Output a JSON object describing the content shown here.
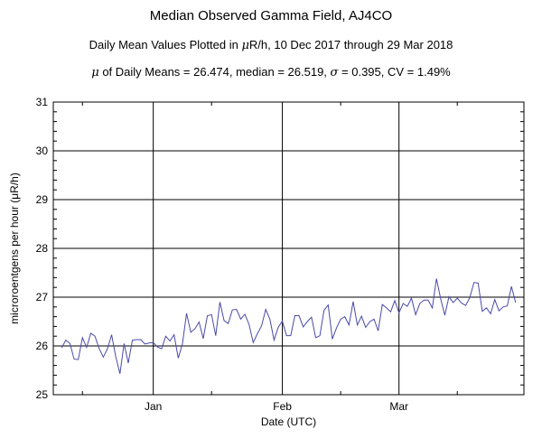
{
  "header": {
    "title": "Median Observed Gamma Field, AJ4CO",
    "subtitle_prefix": "Daily Mean Values Plotted in ",
    "mu": "μ",
    "subtitle_suffix": "R/h, 10 Dec 2017 through 29 Mar 2018",
    "stats_p1": " of Daily Means = 26.474,   median = 26.519,   ",
    "sigma": "σ",
    "stats_p2": " = 0.395,   CV = 1.49%"
  },
  "chart_data": {
    "type": "line",
    "title": "Median Observed Gamma Field, AJ4CO",
    "xlabel": "Date (UTC)",
    "ylabel": "microroentgens per hour (μR/h)",
    "ylim": [
      25,
      31
    ],
    "yticks": [
      "25",
      "26",
      "27",
      "28",
      "29",
      "30",
      "31"
    ],
    "xticks": [
      {
        "label": "Jan",
        "date": "2018-01-01"
      },
      {
        "label": "Feb",
        "date": "2018-02-01"
      },
      {
        "label": "Mar",
        "date": "2018-03-01"
      }
    ],
    "xlim": [
      "2017-12-08",
      "2018-03-31"
    ],
    "grid": true,
    "line_color": "#4a4aa8",
    "series": [
      {
        "start_date": "2017-12-10",
        "values": [
          25.96,
          26.12,
          26.05,
          25.73,
          25.72,
          26.17,
          25.97,
          26.26,
          26.2,
          25.95,
          25.77,
          25.94,
          26.23,
          25.78,
          25.43,
          26.05,
          25.65,
          26.12,
          26.13,
          26.13,
          26.04,
          26.06,
          26.07,
          25.98,
          25.94,
          26.2,
          26.1,
          26.23,
          25.75,
          26.04,
          26.67,
          26.28,
          26.35,
          26.49,
          26.15,
          26.62,
          26.64,
          26.21,
          26.9,
          26.52,
          26.46,
          26.74,
          26.75,
          26.55,
          26.65,
          26.44,
          26.07,
          26.25,
          26.41,
          26.75,
          26.55,
          26.12,
          26.38,
          26.51,
          26.21,
          26.21,
          26.62,
          26.62,
          26.39,
          26.5,
          26.59,
          26.17,
          26.21,
          26.73,
          26.84,
          26.14,
          26.37,
          26.55,
          26.6,
          26.43,
          26.91,
          26.43,
          26.61,
          26.38,
          26.5,
          26.55,
          26.31,
          26.85,
          26.78,
          26.7,
          26.93,
          26.68,
          26.87,
          26.81,
          26.98,
          26.64,
          26.87,
          26.94,
          26.94,
          26.78,
          27.38,
          26.97,
          26.63,
          27.01,
          26.89,
          26.98,
          26.88,
          26.83,
          26.99,
          27.3,
          27.29,
          26.71,
          26.78,
          26.66,
          26.95,
          26.72,
          26.8,
          26.82,
          27.22,
          26.89
        ]
      }
    ]
  }
}
